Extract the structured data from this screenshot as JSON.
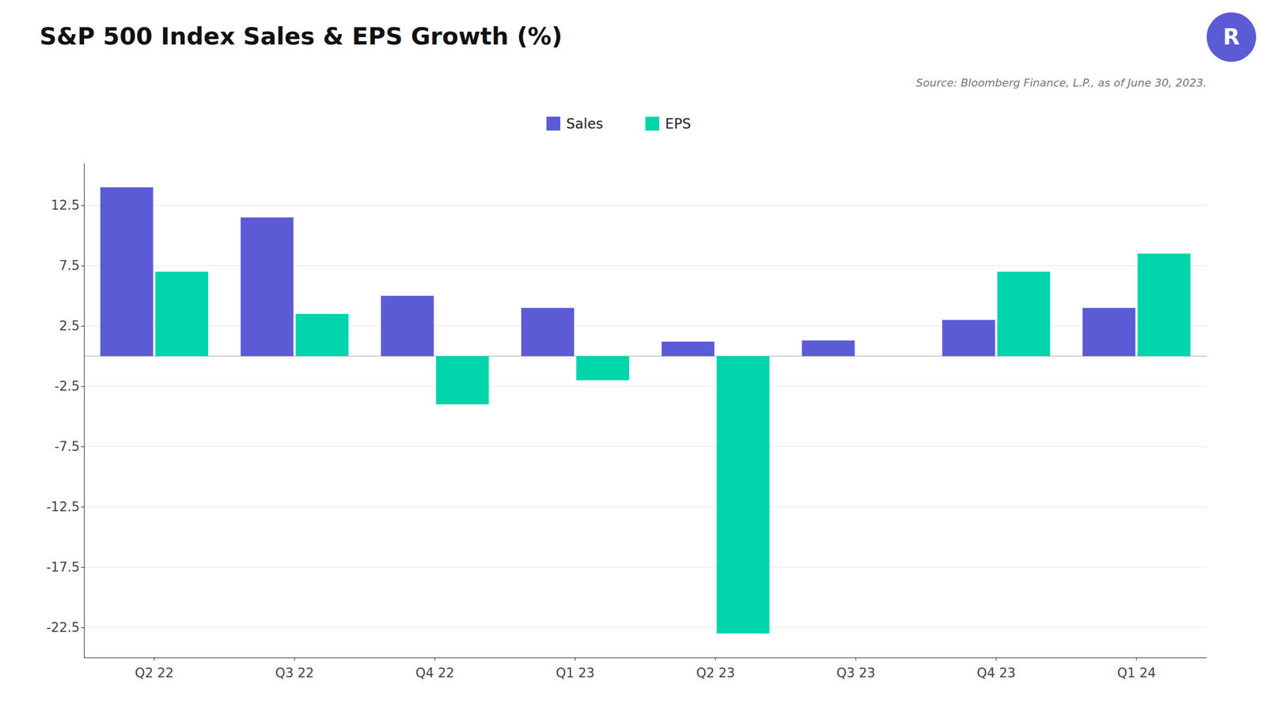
{
  "chart_data": {
    "type": "bar",
    "title": "S&P 500 Index Sales & EPS Growth (%)",
    "annotations": [
      "Source: Bloomberg Finance, L.P., as of June 30, 2023.",
      "R"
    ],
    "categories": [
      "Q2 22",
      "Q3 22",
      "Q4 22",
      "Q1 23",
      "Q2 23",
      "Q3 23",
      "Q4 23",
      "Q1 24"
    ],
    "series": [
      {
        "name": "Sales",
        "color": "#5B5BD6",
        "values": [
          14.0,
          11.5,
          5.0,
          4.0,
          1.2,
          1.3,
          3.0,
          4.0
        ]
      },
      {
        "name": "EPS",
        "color": "#00D4AA",
        "values": [
          7.0,
          3.5,
          -4.0,
          -2.0,
          -23.0,
          null,
          7.0,
          8.5
        ]
      }
    ],
    "ylim": [
      -25,
      16
    ],
    "yticks": [
      -22.5,
      -17.5,
      -12.5,
      -7.5,
      -2.5,
      2.5,
      7.5,
      12.5
    ],
    "grid": true,
    "legend": "top"
  }
}
